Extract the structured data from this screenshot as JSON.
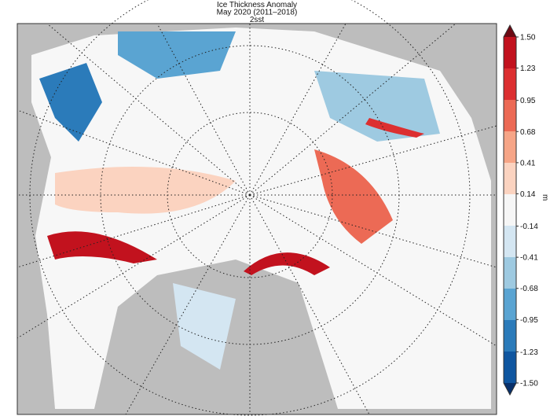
{
  "map": {
    "title": [
      "Ice Thickness Anomaly",
      "May 2020 (2011–2018)",
      "2sst"
    ],
    "colorbar": {
      "unit": "m",
      "ticks": [
        {
          "value": 1.5,
          "label": "1.50"
        },
        1.23,
        0.95,
        0.68,
        0.41,
        0.14,
        -0.14,
        -0.41,
        -0.68,
        -0.95,
        -1.23,
        {
          "value": -1.5,
          "label": "-1.50"
        }
      ],
      "colors": [
        "#c2121e",
        "#dc2f30",
        "#ec6a55",
        "#f6a587",
        "#fbd3c0",
        "#f6f6f6",
        "#d4e6f2",
        "#9ecae1",
        "#5aa4d2",
        "#2b7bba",
        "#0f56a0"
      ],
      "over": "#6d0a14",
      "under": "#08306b"
    }
  }
}
